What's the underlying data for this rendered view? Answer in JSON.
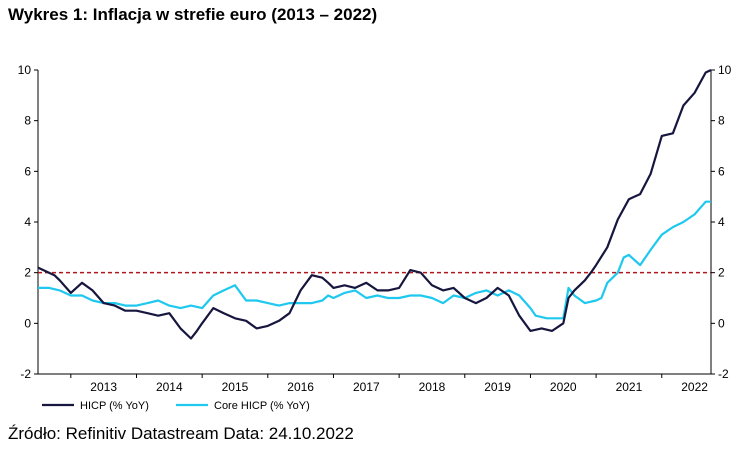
{
  "title": "Wykres 1: Inflacja w strefie euro (2013 – 2022)",
  "source": "Źródło: Refinitiv Datastream Data: 24.10.2022",
  "chart_data": {
    "type": "line",
    "title": "Wykres 1: Inflacja w strefie euro (2013 – 2022)",
    "xlabel": "",
    "ylabel": "",
    "ylim": [
      -2,
      10
    ],
    "xlim": [
      2012.5,
      2022.75
    ],
    "y_ticks": [
      "-2",
      "0",
      "2",
      "4",
      "6",
      "8",
      "10"
    ],
    "x_tick_labels": [
      "2013",
      "2014",
      "2015",
      "2016",
      "2017",
      "2018",
      "2019",
      "2020",
      "2021",
      "2022"
    ],
    "grid": false,
    "legend_position": "bottom-left",
    "reference_line": {
      "value": 2,
      "style": "dashed",
      "color": "#b3171c"
    },
    "series": [
      {
        "name": "HICP (% YoY)",
        "color": "#16163f",
        "x": [
          2012.5,
          2012.75,
          2012.83,
          2013.0,
          2013.17,
          2013.33,
          2013.5,
          2013.67,
          2013.83,
          2014.0,
          2014.17,
          2014.33,
          2014.5,
          2014.67,
          2014.83,
          2014.92,
          2015.0,
          2015.17,
          2015.33,
          2015.5,
          2015.67,
          2015.83,
          2016.0,
          2016.17,
          2016.33,
          2016.5,
          2016.67,
          2016.83,
          2016.92,
          2017.0,
          2017.17,
          2017.33,
          2017.5,
          2017.67,
          2017.83,
          2018.0,
          2018.17,
          2018.33,
          2018.5,
          2018.67,
          2018.83,
          2019.0,
          2019.17,
          2019.33,
          2019.5,
          2019.67,
          2019.83,
          2020.0,
          2020.17,
          2020.33,
          2020.5,
          2020.58,
          2020.67,
          2020.83,
          2020.92,
          2021.0,
          2021.17,
          2021.33,
          2021.5,
          2021.67,
          2021.83,
          2022.0,
          2022.17,
          2022.33,
          2022.5,
          2022.67,
          2022.75
        ],
        "y": [
          2.2,
          1.9,
          1.7,
          1.2,
          1.6,
          1.3,
          0.8,
          0.7,
          0.5,
          0.5,
          0.4,
          0.3,
          0.4,
          -0.2,
          -0.6,
          -0.3,
          0.0,
          0.6,
          0.4,
          0.2,
          0.1,
          -0.2,
          -0.1,
          0.1,
          0.4,
          1.3,
          1.9,
          1.8,
          1.6,
          1.4,
          1.5,
          1.4,
          1.6,
          1.3,
          1.3,
          1.4,
          2.1,
          2.0,
          1.5,
          1.3,
          1.4,
          1.0,
          0.8,
          1.0,
          1.4,
          1.1,
          0.3,
          -0.3,
          -0.2,
          -0.3,
          0.0,
          1.0,
          1.3,
          1.7,
          2.0,
          2.3,
          3.0,
          4.1,
          4.9,
          5.1,
          5.9,
          7.4,
          7.5,
          8.6,
          9.1,
          9.9,
          10.0
        ]
      },
      {
        "name": "Core HICP (% YoY)",
        "color": "#1ec8ef",
        "x": [
          2012.5,
          2012.67,
          2012.83,
          2013.0,
          2013.17,
          2013.33,
          2013.5,
          2013.67,
          2013.83,
          2014.0,
          2014.17,
          2014.33,
          2014.5,
          2014.67,
          2014.83,
          2015.0,
          2015.17,
          2015.33,
          2015.5,
          2015.67,
          2015.83,
          2016.0,
          2016.17,
          2016.33,
          2016.5,
          2016.67,
          2016.83,
          2016.92,
          2017.0,
          2017.17,
          2017.33,
          2017.5,
          2017.67,
          2017.83,
          2018.0,
          2018.17,
          2018.33,
          2018.5,
          2018.67,
          2018.83,
          2019.0,
          2019.17,
          2019.33,
          2019.5,
          2019.67,
          2019.83,
          2020.0,
          2020.08,
          2020.25,
          2020.5,
          2020.58,
          2020.67,
          2020.83,
          2021.0,
          2021.08,
          2021.17,
          2021.33,
          2021.42,
          2021.5,
          2021.67,
          2021.83,
          2022.0,
          2022.17,
          2022.33,
          2022.5,
          2022.67,
          2022.75
        ],
        "y": [
          1.4,
          1.4,
          1.3,
          1.1,
          1.1,
          0.9,
          0.8,
          0.8,
          0.7,
          0.7,
          0.8,
          0.9,
          0.7,
          0.6,
          0.7,
          0.6,
          1.1,
          1.3,
          1.5,
          0.9,
          0.9,
          0.8,
          0.7,
          0.8,
          0.8,
          0.8,
          0.9,
          1.1,
          1.0,
          1.2,
          1.3,
          1.0,
          1.1,
          1.0,
          1.0,
          1.1,
          1.1,
          1.0,
          0.8,
          1.1,
          1.0,
          1.2,
          1.3,
          1.1,
          1.3,
          1.1,
          0.6,
          0.3,
          0.2,
          0.2,
          1.4,
          1.1,
          0.8,
          0.9,
          1.0,
          1.6,
          2.0,
          2.6,
          2.7,
          2.3,
          2.9,
          3.5,
          3.8,
          4.0,
          4.3,
          4.8,
          4.8
        ]
      }
    ]
  }
}
